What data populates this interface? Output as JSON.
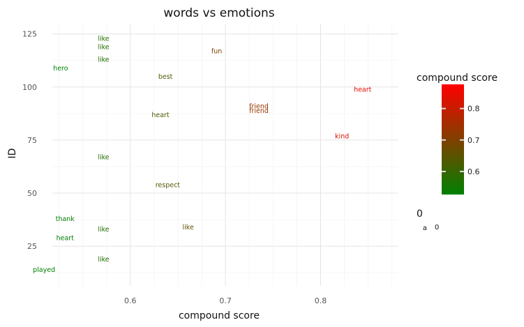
{
  "chart_data": {
    "type": "scatter",
    "title": "words vs emotions",
    "xlabel": "compound score",
    "ylabel": "ID",
    "xlim": [
      0.518,
      0.8818
    ],
    "ylim": [
      6.3,
      129.5
    ],
    "x_ticks": [
      0.6,
      0.7,
      0.8
    ],
    "x_tick_labels": [
      "0.6",
      "0.7",
      "0.8"
    ],
    "y_ticks": [
      25,
      50,
      75,
      100,
      125
    ],
    "y_tick_labels": [
      "25",
      "50",
      "75",
      "100",
      "125"
    ],
    "grid": true,
    "points": [
      {
        "label": "like",
        "x": 0.5719,
        "y": 123
      },
      {
        "label": "like",
        "x": 0.5719,
        "y": 119
      },
      {
        "label": "like",
        "x": 0.5719,
        "y": 113
      },
      {
        "label": "hero",
        "x": 0.5267,
        "y": 109
      },
      {
        "label": "best",
        "x": 0.6369,
        "y": 105
      },
      {
        "label": "fun",
        "x": 0.6908,
        "y": 117
      },
      {
        "label": "heart",
        "x": 0.8442,
        "y": 99
      },
      {
        "label": "friend",
        "x": 0.7351,
        "y": 91
      },
      {
        "label": "friend",
        "x": 0.7351,
        "y": 89
      },
      {
        "label": "heart",
        "x": 0.6317,
        "y": 87
      },
      {
        "label": "kind",
        "x": 0.8225,
        "y": 77
      },
      {
        "label": "like",
        "x": 0.5719,
        "y": 67
      },
      {
        "label": "respect",
        "x": 0.6393,
        "y": 54
      },
      {
        "label": "thank",
        "x": 0.5314,
        "y": 38
      },
      {
        "label": "like",
        "x": 0.5719,
        "y": 33
      },
      {
        "label": "like",
        "x": 0.6608,
        "y": 34
      },
      {
        "label": "heart",
        "x": 0.5314,
        "y": 29
      },
      {
        "label": "like",
        "x": 0.5719,
        "y": 19
      },
      {
        "label": "played",
        "x": 0.5093,
        "y": 14
      }
    ],
    "color_legend": {
      "title": "compound score",
      "ticks": [
        0.6,
        0.7,
        0.8
      ],
      "tick_labels": [
        "0.6",
        "0.7",
        "0.8"
      ],
      "range": [
        0.5267,
        0.8768
      ],
      "low_color": "#008000",
      "high_color": "#ff0000"
    },
    "size_legend": {
      "title": "0",
      "key_symbol": "a",
      "key_label": "0"
    }
  }
}
